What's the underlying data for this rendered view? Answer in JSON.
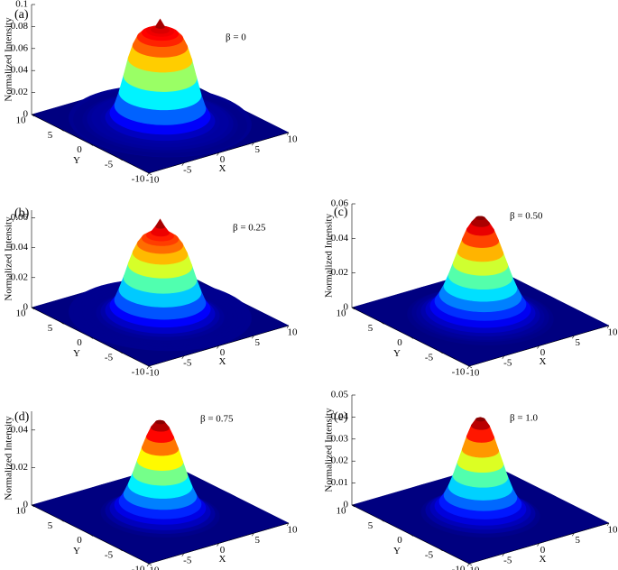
{
  "chart_data": [
    {
      "type": "surface",
      "label": "(a)",
      "annotation": "β = 0",
      "zlabel": "Normalized Intensity",
      "xlabel": "X",
      "ylabel": "Y",
      "r": [
        0,
        0.5,
        1,
        1.5,
        2,
        2.5,
        3,
        3.5,
        4,
        4.5,
        5,
        5.5,
        6,
        6.5,
        7,
        7.5,
        8,
        8.5,
        9,
        9.5,
        10
      ],
      "values": [
        0.095,
        0.088,
        0.085,
        0.084,
        0.082,
        0.078,
        0.07,
        0.058,
        0.042,
        0.027,
        0.015,
        0.008,
        0.004,
        0.003,
        0.003,
        0.003,
        0.002,
        0.001,
        0.001,
        0.001,
        0.002
      ],
      "xlim": [
        -10,
        10
      ],
      "ylim": [
        -10,
        10
      ],
      "zlim": [
        0,
        0.1
      ],
      "xticks": [
        -10,
        -5,
        0,
        5,
        10
      ],
      "yticks": [
        -10,
        -5,
        0,
        5,
        10
      ],
      "zticks": [
        0,
        0.02,
        0.04,
        0.06,
        0.08,
        0.1
      ]
    },
    {
      "type": "surface",
      "label": "(b)",
      "annotation": "β = 0.25",
      "zlabel": "Normalized Intensity",
      "xlabel": "X",
      "ylabel": "Y",
      "r": [
        0,
        0.5,
        1,
        1.5,
        2,
        2.5,
        3,
        3.5,
        4,
        4.5,
        5,
        5.5,
        6,
        6.5,
        7,
        7.5,
        8,
        8.5,
        9,
        9.5,
        10
      ],
      "values": [
        0.065,
        0.06,
        0.056,
        0.054,
        0.052,
        0.048,
        0.042,
        0.034,
        0.025,
        0.017,
        0.01,
        0.006,
        0.003,
        0.002,
        0.001,
        0.001,
        0.001,
        0.001,
        0.001,
        0.001,
        0.001
      ],
      "xlim": [
        -10,
        10
      ],
      "ylim": [
        -10,
        10
      ],
      "zlim": [
        0,
        0.065
      ],
      "xticks": [
        -10,
        -5,
        0,
        5,
        10
      ],
      "yticks": [
        -10,
        -5,
        0,
        5,
        10
      ],
      "zticks": [
        0,
        0.02,
        0.04,
        0.06
      ]
    },
    {
      "type": "surface",
      "label": "(c)",
      "annotation": "β = 0.50",
      "zlabel": "Normalized Intensity",
      "xlabel": "X",
      "ylabel": "Y",
      "r": [
        0,
        0.5,
        1,
        1.5,
        2,
        2.5,
        3,
        3.5,
        4,
        4.5,
        5,
        5.5,
        6,
        6.5,
        7,
        7.5,
        8,
        8.5,
        9,
        9.5,
        10
      ],
      "values": [
        0.058,
        0.057,
        0.054,
        0.05,
        0.044,
        0.037,
        0.03,
        0.023,
        0.017,
        0.012,
        0.008,
        0.005,
        0.003,
        0.002,
        0.001,
        0.001,
        0,
        0,
        0,
        0,
        0
      ],
      "xlim": [
        -10,
        10
      ],
      "ylim": [
        -10,
        10
      ],
      "zlim": [
        0,
        0.06
      ],
      "xticks": [
        -10,
        -5,
        0,
        5,
        10
      ],
      "yticks": [
        -10,
        -5,
        0,
        5,
        10
      ],
      "zticks": [
        0,
        0.02,
        0.04,
        0.06
      ]
    },
    {
      "type": "surface",
      "label": "(d)",
      "annotation": "β = 0.75",
      "zlabel": "Normalized Intensity",
      "xlabel": "X",
      "ylabel": "Y",
      "r": [
        0,
        0.5,
        1,
        1.5,
        2,
        2.5,
        3,
        3.5,
        4,
        4.5,
        5,
        5.5,
        6,
        6.5,
        7,
        7.5,
        8,
        8.5,
        9,
        9.5,
        10
      ],
      "values": [
        0.05,
        0.049,
        0.046,
        0.041,
        0.035,
        0.028,
        0.021,
        0.015,
        0.01,
        0.006,
        0.004,
        0.002,
        0.001,
        0,
        0,
        0,
        0,
        0,
        0,
        0,
        0
      ],
      "xlim": [
        -10,
        10
      ],
      "ylim": [
        -10,
        10
      ],
      "zlim": [
        0,
        0.05
      ],
      "xticks": [
        -10,
        -5,
        0,
        5,
        10
      ],
      "yticks": [
        -10,
        -5,
        0,
        5,
        10
      ],
      "zticks": [
        0,
        0.02,
        0.04
      ]
    },
    {
      "type": "surface",
      "label": "(e)",
      "annotation": "β = 1.0",
      "zlabel": "Normalized Intensity",
      "xlabel": "X",
      "ylabel": "Y",
      "r": [
        0,
        0.5,
        1,
        1.5,
        2,
        2.5,
        3,
        3.5,
        4,
        4.5,
        5,
        5.5,
        6,
        6.5,
        7,
        7.5,
        8,
        8.5,
        9,
        9.5,
        10
      ],
      "values": [
        0.044,
        0.043,
        0.04,
        0.035,
        0.029,
        0.023,
        0.017,
        0.012,
        0.008,
        0.005,
        0.003,
        0.002,
        0.001,
        0,
        0,
        0,
        0,
        0,
        0,
        0,
        0
      ],
      "xlim": [
        -10,
        10
      ],
      "ylim": [
        -10,
        10
      ],
      "zlim": [
        0,
        0.05
      ],
      "xticks": [
        -10,
        -5,
        0,
        5,
        10
      ],
      "yticks": [
        -10,
        -5,
        0,
        5,
        10
      ],
      "zticks": [
        0,
        0.01,
        0.02,
        0.03,
        0.04,
        0.05
      ]
    }
  ]
}
